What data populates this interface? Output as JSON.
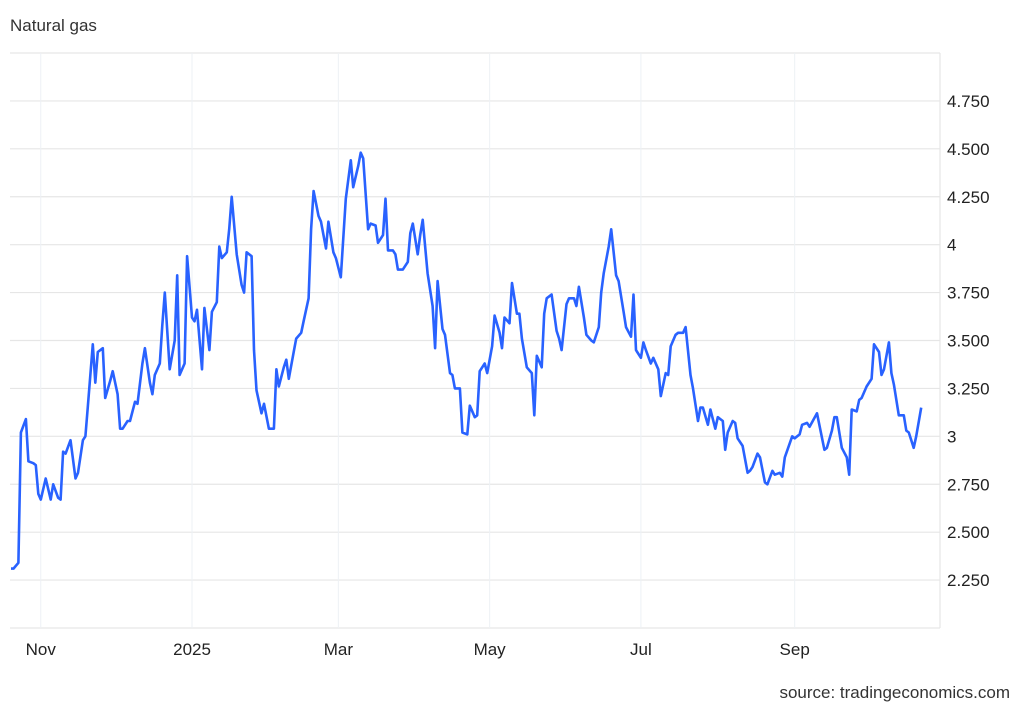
{
  "chart_data": {
    "type": "line",
    "title": "Natural gas",
    "source": "source: tradingeconomics.com",
    "xlim": [
      "2024-10-20",
      "2025-10-30"
    ],
    "ylim": [
      2,
      5
    ],
    "y_axis_position": "right",
    "grid": true,
    "line_color": "#2962ff",
    "x_ticks": [
      {
        "date": "2024-11-01",
        "label": "Nov"
      },
      {
        "date": "2025-01-01",
        "label": "2025"
      },
      {
        "date": "2025-03-01",
        "label": "Mar"
      },
      {
        "date": "2025-05-01",
        "label": "May"
      },
      {
        "date": "2025-07-01",
        "label": "Jul"
      },
      {
        "date": "2025-09-01",
        "label": "Sep"
      }
    ],
    "y_ticks": [
      {
        "value": 2.25,
        "label": "2.250"
      },
      {
        "value": 2.5,
        "label": "2.500"
      },
      {
        "value": 2.75,
        "label": "2.750"
      },
      {
        "value": 3,
        "label": "3"
      },
      {
        "value": 3.25,
        "label": "3.250"
      },
      {
        "value": 3.5,
        "label": "3.500"
      },
      {
        "value": 3.75,
        "label": "3.750"
      },
      {
        "value": 4,
        "label": "4"
      },
      {
        "value": 4.25,
        "label": "4.250"
      },
      {
        "value": 4.5,
        "label": "4.500"
      },
      {
        "value": 4.75,
        "label": "4.750"
      }
    ],
    "series": [
      {
        "points": [
          [
            "2024-10-20",
            2.31
          ],
          [
            "2024-10-21",
            2.31
          ],
          [
            "2024-10-23",
            2.34
          ],
          [
            "2024-10-24",
            3.02
          ],
          [
            "2024-10-26",
            3.09
          ],
          [
            "2024-10-27",
            2.87
          ],
          [
            "2024-10-29",
            2.86
          ],
          [
            "2024-10-30",
            2.85
          ],
          [
            "2024-10-31",
            2.7
          ],
          [
            "2024-11-01",
            2.67
          ],
          [
            "2024-11-03",
            2.78
          ],
          [
            "2024-11-05",
            2.67
          ],
          [
            "2024-11-06",
            2.75
          ],
          [
            "2024-11-08",
            2.68
          ],
          [
            "2024-11-09",
            2.67
          ],
          [
            "2024-11-10",
            2.92
          ],
          [
            "2024-11-11",
            2.91
          ],
          [
            "2024-11-13",
            2.98
          ],
          [
            "2024-11-15",
            2.78
          ],
          [
            "2024-11-16",
            2.81
          ],
          [
            "2024-11-18",
            2.98
          ],
          [
            "2024-11-19",
            3.0
          ],
          [
            "2024-11-20",
            3.16
          ],
          [
            "2024-11-22",
            3.48
          ],
          [
            "2024-11-23",
            3.28
          ],
          [
            "2024-11-24",
            3.44
          ],
          [
            "2024-11-26",
            3.46
          ],
          [
            "2024-11-27",
            3.2
          ],
          [
            "2024-11-29",
            3.29
          ],
          [
            "2024-11-30",
            3.34
          ],
          [
            "2024-12-02",
            3.22
          ],
          [
            "2024-12-03",
            3.04
          ],
          [
            "2024-12-04",
            3.04
          ],
          [
            "2024-12-06",
            3.08
          ],
          [
            "2024-12-07",
            3.08
          ],
          [
            "2024-12-09",
            3.18
          ],
          [
            "2024-12-10",
            3.17
          ],
          [
            "2024-12-12",
            3.38
          ],
          [
            "2024-12-13",
            3.46
          ],
          [
            "2024-12-15",
            3.28
          ],
          [
            "2024-12-16",
            3.22
          ],
          [
            "2024-12-17",
            3.32
          ],
          [
            "2024-12-19",
            3.38
          ],
          [
            "2024-12-20",
            3.58
          ],
          [
            "2024-12-21",
            3.75
          ],
          [
            "2024-12-23",
            3.35
          ],
          [
            "2024-12-25",
            3.5
          ],
          [
            "2024-12-26",
            3.84
          ],
          [
            "2024-12-27",
            3.32
          ],
          [
            "2024-12-29",
            3.38
          ],
          [
            "2024-12-30",
            3.94
          ],
          [
            "2025-01-01",
            3.62
          ],
          [
            "2025-01-02",
            3.6
          ],
          [
            "2025-01-03",
            3.66
          ],
          [
            "2025-01-05",
            3.35
          ],
          [
            "2025-01-06",
            3.67
          ],
          [
            "2025-01-08",
            3.45
          ],
          [
            "2025-01-09",
            3.65
          ],
          [
            "2025-01-11",
            3.7
          ],
          [
            "2025-01-12",
            3.99
          ],
          [
            "2025-01-13",
            3.93
          ],
          [
            "2025-01-15",
            3.96
          ],
          [
            "2025-01-16",
            4.08
          ],
          [
            "2025-01-17",
            4.25
          ],
          [
            "2025-01-19",
            3.95
          ],
          [
            "2025-01-21",
            3.79
          ],
          [
            "2025-01-22",
            3.75
          ],
          [
            "2025-01-23",
            3.96
          ],
          [
            "2025-01-25",
            3.94
          ],
          [
            "2025-01-26",
            3.45
          ],
          [
            "2025-01-27",
            3.24
          ],
          [
            "2025-01-29",
            3.12
          ],
          [
            "2025-01-30",
            3.17
          ],
          [
            "2025-02-01",
            3.04
          ],
          [
            "2025-02-03",
            3.04
          ],
          [
            "2025-02-04",
            3.35
          ],
          [
            "2025-02-05",
            3.26
          ],
          [
            "2025-02-07",
            3.36
          ],
          [
            "2025-02-08",
            3.4
          ],
          [
            "2025-02-09",
            3.3
          ],
          [
            "2025-02-11",
            3.44
          ],
          [
            "2025-02-12",
            3.51
          ],
          [
            "2025-02-14",
            3.54
          ],
          [
            "2025-02-15",
            3.6
          ],
          [
            "2025-02-17",
            3.72
          ],
          [
            "2025-02-18",
            4.08
          ],
          [
            "2025-02-19",
            4.28
          ],
          [
            "2025-02-21",
            4.15
          ],
          [
            "2025-02-22",
            4.12
          ],
          [
            "2025-02-24",
            3.98
          ],
          [
            "2025-02-25",
            4.12
          ],
          [
            "2025-02-27",
            3.96
          ],
          [
            "2025-02-28",
            3.93
          ],
          [
            "2025-03-02",
            3.83
          ],
          [
            "2025-03-04",
            4.24
          ],
          [
            "2025-03-05",
            4.34
          ],
          [
            "2025-03-06",
            4.44
          ],
          [
            "2025-03-07",
            4.3
          ],
          [
            "2025-03-09",
            4.41
          ],
          [
            "2025-03-10",
            4.48
          ],
          [
            "2025-03-11",
            4.45
          ],
          [
            "2025-03-13",
            4.08
          ],
          [
            "2025-03-14",
            4.11
          ],
          [
            "2025-03-16",
            4.1
          ],
          [
            "2025-03-17",
            4.01
          ],
          [
            "2025-03-19",
            4.05
          ],
          [
            "2025-03-20",
            4.24
          ],
          [
            "2025-03-21",
            3.97
          ],
          [
            "2025-03-23",
            3.97
          ],
          [
            "2025-03-24",
            3.95
          ],
          [
            "2025-03-25",
            3.87
          ],
          [
            "2025-03-27",
            3.87
          ],
          [
            "2025-03-29",
            3.91
          ],
          [
            "2025-03-30",
            4.06
          ],
          [
            "2025-03-31",
            4.11
          ],
          [
            "2025-04-02",
            3.95
          ],
          [
            "2025-04-03",
            4.05
          ],
          [
            "2025-04-04",
            4.13
          ],
          [
            "2025-04-06",
            3.85
          ],
          [
            "2025-04-08",
            3.68
          ],
          [
            "2025-04-09",
            3.46
          ],
          [
            "2025-04-10",
            3.81
          ],
          [
            "2025-04-12",
            3.56
          ],
          [
            "2025-04-13",
            3.53
          ],
          [
            "2025-04-15",
            3.33
          ],
          [
            "2025-04-16",
            3.32
          ],
          [
            "2025-04-17",
            3.25
          ],
          [
            "2025-04-19",
            3.25
          ],
          [
            "2025-04-20",
            3.02
          ],
          [
            "2025-04-22",
            3.01
          ],
          [
            "2025-04-23",
            3.16
          ],
          [
            "2025-04-25",
            3.1
          ],
          [
            "2025-04-26",
            3.11
          ],
          [
            "2025-04-27",
            3.34
          ],
          [
            "2025-04-29",
            3.38
          ],
          [
            "2025-04-30",
            3.33
          ],
          [
            "2025-05-02",
            3.47
          ],
          [
            "2025-05-03",
            3.63
          ],
          [
            "2025-05-05",
            3.54
          ],
          [
            "2025-05-06",
            3.46
          ],
          [
            "2025-05-07",
            3.62
          ],
          [
            "2025-05-09",
            3.59
          ],
          [
            "2025-05-10",
            3.8
          ],
          [
            "2025-05-12",
            3.64
          ],
          [
            "2025-05-13",
            3.64
          ],
          [
            "2025-05-14",
            3.51
          ],
          [
            "2025-05-16",
            3.36
          ],
          [
            "2025-05-18",
            3.33
          ],
          [
            "2025-05-19",
            3.11
          ],
          [
            "2025-05-20",
            3.42
          ],
          [
            "2025-05-22",
            3.36
          ],
          [
            "2025-05-23",
            3.64
          ],
          [
            "2025-05-24",
            3.72
          ],
          [
            "2025-05-26",
            3.74
          ],
          [
            "2025-05-28",
            3.55
          ],
          [
            "2025-05-29",
            3.51
          ],
          [
            "2025-05-30",
            3.45
          ],
          [
            "2025-06-01",
            3.69
          ],
          [
            "2025-06-02",
            3.72
          ],
          [
            "2025-06-04",
            3.72
          ],
          [
            "2025-06-05",
            3.68
          ],
          [
            "2025-06-06",
            3.78
          ],
          [
            "2025-06-08",
            3.62
          ],
          [
            "2025-06-09",
            3.53
          ],
          [
            "2025-06-11",
            3.5
          ],
          [
            "2025-06-12",
            3.49
          ],
          [
            "2025-06-14",
            3.57
          ],
          [
            "2025-06-15",
            3.75
          ],
          [
            "2025-06-16",
            3.85
          ],
          [
            "2025-06-18",
            3.99
          ],
          [
            "2025-06-19",
            4.08
          ],
          [
            "2025-06-21",
            3.84
          ],
          [
            "2025-06-22",
            3.81
          ],
          [
            "2025-06-24",
            3.65
          ],
          [
            "2025-06-25",
            3.57
          ],
          [
            "2025-06-27",
            3.52
          ],
          [
            "2025-06-28",
            3.74
          ],
          [
            "2025-06-29",
            3.45
          ],
          [
            "2025-07-01",
            3.41
          ],
          [
            "2025-07-02",
            3.49
          ],
          [
            "2025-07-03",
            3.45
          ],
          [
            "2025-07-05",
            3.38
          ],
          [
            "2025-07-06",
            3.41
          ],
          [
            "2025-07-08",
            3.35
          ],
          [
            "2025-07-09",
            3.21
          ],
          [
            "2025-07-11",
            3.33
          ],
          [
            "2025-07-12",
            3.32
          ],
          [
            "2025-07-13",
            3.47
          ],
          [
            "2025-07-15",
            3.53
          ],
          [
            "2025-07-16",
            3.54
          ],
          [
            "2025-07-18",
            3.54
          ],
          [
            "2025-07-19",
            3.57
          ],
          [
            "2025-07-21",
            3.32
          ],
          [
            "2025-07-22",
            3.25
          ],
          [
            "2025-07-24",
            3.08
          ],
          [
            "2025-07-25",
            3.15
          ],
          [
            "2025-07-26",
            3.15
          ],
          [
            "2025-07-28",
            3.06
          ],
          [
            "2025-07-29",
            3.14
          ],
          [
            "2025-07-31",
            3.04
          ],
          [
            "2025-08-01",
            3.1
          ],
          [
            "2025-08-03",
            3.08
          ],
          [
            "2025-08-04",
            2.93
          ],
          [
            "2025-08-05",
            3.02
          ],
          [
            "2025-08-07",
            3.08
          ],
          [
            "2025-08-08",
            3.07
          ],
          [
            "2025-08-09",
            2.99
          ],
          [
            "2025-08-11",
            2.95
          ],
          [
            "2025-08-13",
            2.81
          ],
          [
            "2025-08-14",
            2.82
          ],
          [
            "2025-08-15",
            2.84
          ],
          [
            "2025-08-17",
            2.91
          ],
          [
            "2025-08-18",
            2.89
          ],
          [
            "2025-08-20",
            2.76
          ],
          [
            "2025-08-21",
            2.75
          ],
          [
            "2025-08-23",
            2.82
          ],
          [
            "2025-08-24",
            2.8
          ],
          [
            "2025-08-26",
            2.81
          ],
          [
            "2025-08-27",
            2.79
          ],
          [
            "2025-08-28",
            2.89
          ],
          [
            "2025-08-31",
            3.0
          ],
          [
            "2025-09-01",
            2.99
          ],
          [
            "2025-09-03",
            3.01
          ],
          [
            "2025-09-04",
            3.06
          ],
          [
            "2025-09-06",
            3.07
          ],
          [
            "2025-09-07",
            3.05
          ],
          [
            "2025-09-10",
            3.12
          ],
          [
            "2025-09-13",
            2.93
          ],
          [
            "2025-09-14",
            2.94
          ],
          [
            "2025-09-16",
            3.03
          ],
          [
            "2025-09-17",
            3.1
          ],
          [
            "2025-09-18",
            3.1
          ],
          [
            "2025-09-20",
            2.94
          ],
          [
            "2025-09-22",
            2.89
          ],
          [
            "2025-09-23",
            2.8
          ],
          [
            "2025-09-24",
            3.14
          ],
          [
            "2025-09-26",
            3.13
          ],
          [
            "2025-09-27",
            3.19
          ],
          [
            "2025-09-28",
            3.2
          ],
          [
            "2025-09-30",
            3.26
          ],
          [
            "2025-10-02",
            3.3
          ],
          [
            "2025-10-03",
            3.48
          ],
          [
            "2025-10-05",
            3.44
          ],
          [
            "2025-10-06",
            3.32
          ],
          [
            "2025-10-07",
            3.35
          ],
          [
            "2025-10-09",
            3.49
          ],
          [
            "2025-10-10",
            3.33
          ],
          [
            "2025-10-11",
            3.27
          ],
          [
            "2025-10-13",
            3.11
          ],
          [
            "2025-10-15",
            3.11
          ],
          [
            "2025-10-16",
            3.03
          ],
          [
            "2025-10-17",
            3.02
          ],
          [
            "2025-10-19",
            2.94
          ],
          [
            "2025-10-20",
            3.0
          ],
          [
            "2025-10-22",
            3.15
          ]
        ]
      }
    ]
  }
}
